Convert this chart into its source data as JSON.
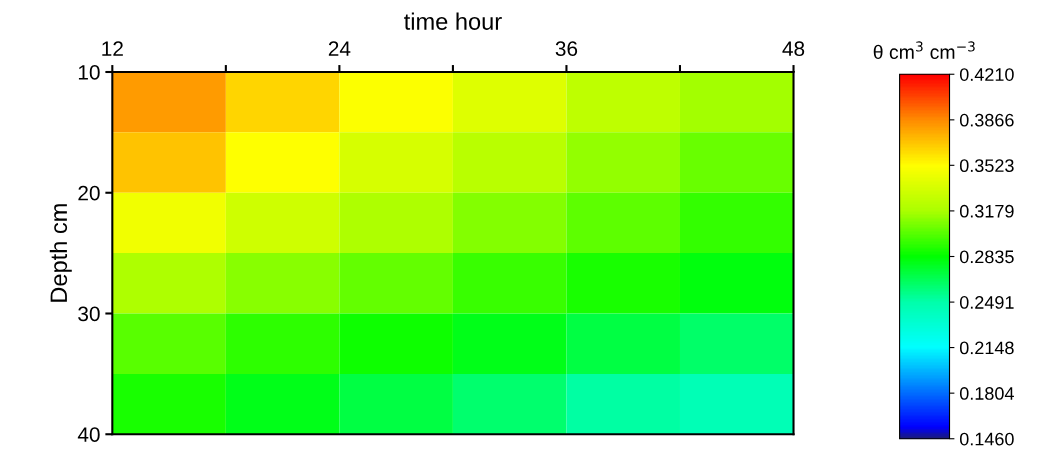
{
  "chart_data": {
    "type": "heatmap",
    "xlabel": "time hour",
    "ylabel": "Depth cm",
    "clabel": "θ cm$^{3}$ cm$^{−3}$",
    "cells": [
      [
        0.382,
        0.365,
        0.351,
        0.339,
        0.326,
        0.316
      ],
      [
        0.37,
        0.352,
        0.336,
        0.324,
        0.313,
        0.304
      ],
      [
        0.346,
        0.332,
        0.319,
        0.31,
        0.302,
        0.294
      ],
      [
        0.319,
        0.311,
        0.303,
        0.295,
        0.288,
        0.281
      ],
      [
        0.301,
        0.293,
        0.286,
        0.279,
        0.27,
        0.263
      ],
      [
        0.288,
        0.279,
        0.27,
        0.261,
        0.251,
        0.244
      ]
    ],
    "xlim": [
      12,
      48
    ],
    "ylim": [
      40,
      10
    ],
    "xticks": [
      12,
      {
        "value": 18,
        "label": null
      },
      24,
      {
        "value": 30,
        "label": null
      },
      36,
      {
        "value": 42,
        "label": null
      },
      48
    ],
    "yticks": [
      10,
      20,
      30,
      40
    ],
    "clim": [
      0.146,
      0.421
    ],
    "cticks": [
      {
        "value": 0.146,
        "label": "0.1460"
      },
      {
        "value": 0.1804,
        "label": "0.1804"
      },
      {
        "value": 0.2148,
        "label": "0.2148"
      },
      {
        "value": 0.2491,
        "label": "0.2491"
      },
      {
        "value": 0.2835,
        "label": "0.2835"
      },
      {
        "value": 0.3179,
        "label": "0.3179"
      },
      {
        "value": 0.3523,
        "label": "0.3523"
      },
      {
        "value": 0.3866,
        "label": "0.3866"
      },
      {
        "value": 0.421,
        "label": "0.4210"
      }
    ]
  }
}
